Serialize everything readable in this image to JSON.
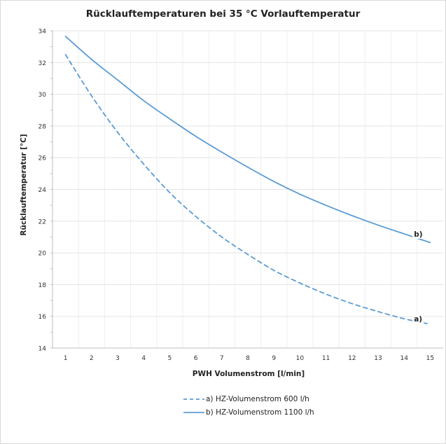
{
  "chart_data": {
    "type": "line",
    "title": "Rücklauftemperaturen bei 35 °C Vorlauftemperatur",
    "xlabel": "PWH Volumenstrom [l/min]",
    "ylabel": "Rücklauftemperatur [°C]",
    "xlim": [
      0.5,
      15.5
    ],
    "ylim": [
      14,
      34
    ],
    "x_ticks": [
      1,
      2,
      3,
      4,
      5,
      6,
      7,
      8,
      9,
      10,
      11,
      12,
      13,
      14,
      15
    ],
    "y_ticks": [
      14,
      16,
      18,
      20,
      22,
      24,
      26,
      28,
      30,
      32,
      34
    ],
    "grid": true,
    "legend_position": "bottom",
    "series": [
      {
        "name": "a)  HZ-Volumenstrom 600 l/h",
        "end_label": "a)",
        "style": "dashed",
        "color": "#5b9bd5",
        "x": [
          1,
          2,
          3,
          4,
          5,
          6,
          7,
          8,
          9,
          10,
          11,
          12,
          13,
          14,
          15
        ],
        "y": [
          32.5,
          29.9,
          27.6,
          25.6,
          23.8,
          22.3,
          21.0,
          19.9,
          18.9,
          18.1,
          17.4,
          16.8,
          16.3,
          15.85,
          15.5
        ]
      },
      {
        "name": "b)  HZ-Volumenstrom 1100 l/h",
        "end_label": "b)",
        "style": "solid",
        "color": "#5b9bd5",
        "x": [
          1,
          2,
          3,
          4,
          5,
          6,
          7,
          8,
          9,
          10,
          11,
          12,
          13,
          14,
          15
        ],
        "y": [
          33.65,
          32.2,
          30.9,
          29.6,
          28.45,
          27.35,
          26.35,
          25.4,
          24.5,
          23.7,
          23.0,
          22.35,
          21.75,
          21.2,
          20.65
        ]
      }
    ]
  }
}
